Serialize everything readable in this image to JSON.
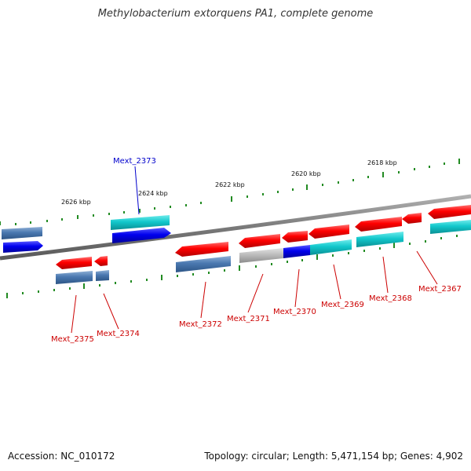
{
  "title": "Methylobacterium extorquens PA1, complete genome",
  "footer": {
    "accession": "Accession: NC_010172",
    "summary": "Topology: circular; Length: 5,471,154 bp; Genes: 4,902"
  },
  "colors": {
    "backbone": "#808080",
    "tick": "#228b22",
    "label_forward": "#0000cc",
    "label_reverse": "#cc0000"
  },
  "ticks": [
    {
      "label": "2626 kbp"
    },
    {
      "label": "2624 kbp"
    },
    {
      "label": "2622 kbp"
    },
    {
      "label": "2620 kbp"
    },
    {
      "label": "2618 kbp"
    }
  ],
  "labeled_genes": [
    {
      "name": "Mext_2373",
      "strand": "forward"
    },
    {
      "name": "Mext_2375",
      "strand": "reverse"
    },
    {
      "name": "Mext_2374",
      "strand": "reverse"
    },
    {
      "name": "Mext_2372",
      "strand": "reverse"
    },
    {
      "name": "Mext_2371",
      "strand": "reverse"
    },
    {
      "name": "Mext_2370",
      "strand": "reverse"
    },
    {
      "name": "Mext_2369",
      "strand": "reverse"
    },
    {
      "name": "Mext_2368",
      "strand": "reverse"
    },
    {
      "name": "Mext_2367",
      "strand": "reverse"
    }
  ]
}
